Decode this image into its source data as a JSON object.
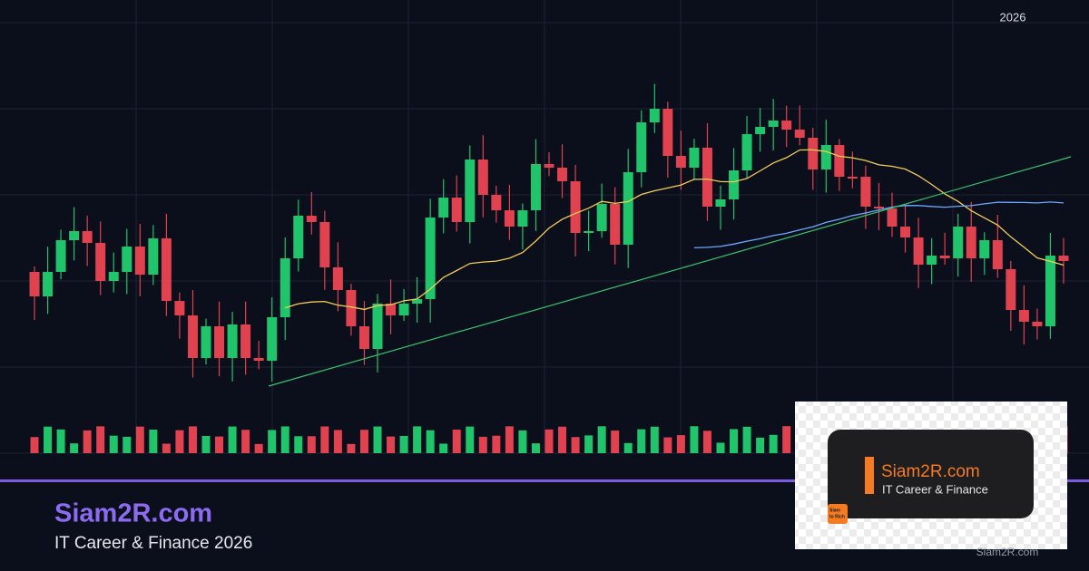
{
  "header": {
    "year": "2026"
  },
  "brand": {
    "title": "Siam2R.com",
    "subtitle": "IT Career & Finance 2026"
  },
  "logo_card": {
    "title": "Siam2R.com",
    "subtitle": "IT Career & Finance",
    "badge": [
      "Siam",
      "to Rich"
    ]
  },
  "footer": {
    "site": "Siam2R.com"
  }
}
